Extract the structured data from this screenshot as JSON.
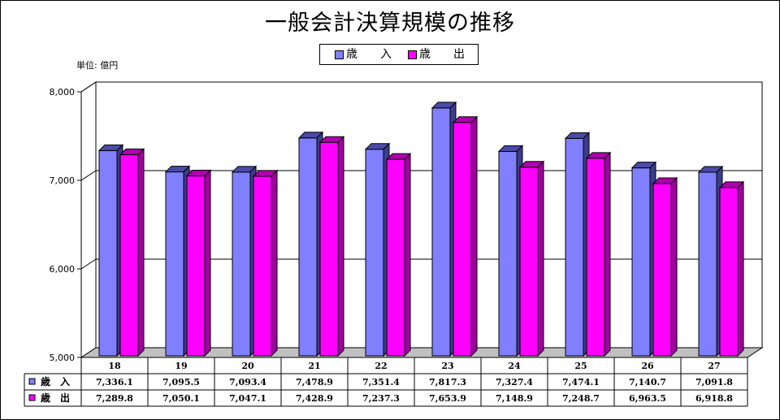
{
  "chart_data": {
    "type": "bar",
    "title": "一般会計決算規模の推移",
    "unit_label": "単位: 億円",
    "categories": [
      "18",
      "19",
      "20",
      "21",
      "22",
      "23",
      "24",
      "25",
      "26",
      "27"
    ],
    "series": [
      {
        "name": "歳　入",
        "color": "#8080ff",
        "top_color": "#4a4aa8",
        "side_color": "#3c3c8c",
        "values": [
          7336.1,
          7095.5,
          7093.4,
          7478.9,
          7351.4,
          7817.3,
          7327.4,
          7474.1,
          7140.7,
          7091.8
        ],
        "labels": [
          "7,336.1",
          "7,095.5",
          "7,093.4",
          "7,478.9",
          "7,351.4",
          "7,817.3",
          "7,327.4",
          "7,474.1",
          "7,140.7",
          "7,091.8"
        ]
      },
      {
        "name": "歳　出",
        "color": "#ff00ff",
        "top_color": "#b000b0",
        "side_color": "#a000a0",
        "values": [
          7289.8,
          7050.1,
          7047.1,
          7428.9,
          7237.3,
          7653.9,
          7148.9,
          7248.7,
          6963.5,
          6918.8
        ],
        "labels": [
          "7,289.8",
          "7,050.1",
          "7,047.1",
          "7,428.9",
          "7,237.3",
          "7,653.9",
          "7,148.9",
          "7,248.7",
          "6,963.5",
          "6,918.8"
        ]
      }
    ],
    "ylim": [
      5000,
      8000
    ],
    "yticks": [
      5000,
      6000,
      7000,
      8000
    ],
    "ytick_labels": [
      "5,000",
      "6,000",
      "7,000",
      "8,000"
    ],
    "grid": true,
    "legend_position": "top-center",
    "data_table": true
  },
  "legend_label_in": "歳　　入",
  "legend_label_out": "歳　　出"
}
